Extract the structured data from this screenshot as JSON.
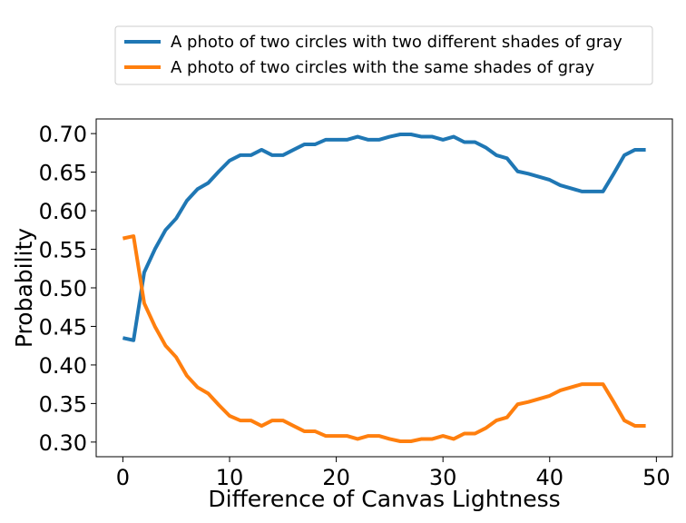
{
  "chart_data": {
    "type": "line",
    "xlabel": "Difference of Canvas Lightness",
    "ylabel": "Probability",
    "xlim": [
      -2.5,
      51.5
    ],
    "ylim": [
      0.281,
      0.719
    ],
    "xticks": [
      0,
      10,
      20,
      30,
      40,
      50
    ],
    "xtick_labels": [
      "0",
      "10",
      "20",
      "30",
      "40",
      "50"
    ],
    "yticks": [
      0.3,
      0.35,
      0.4,
      0.45,
      0.5,
      0.55,
      0.6,
      0.65,
      0.7
    ],
    "ytick_labels": [
      "0.30",
      "0.35",
      "0.40",
      "0.45",
      "0.50",
      "0.55",
      "0.60",
      "0.65",
      "0.70"
    ],
    "grid": false,
    "legend_position": "top, above plot",
    "x": [
      0,
      1,
      2,
      3,
      4,
      5,
      6,
      7,
      8,
      9,
      10,
      11,
      12,
      13,
      14,
      15,
      16,
      17,
      18,
      19,
      20,
      21,
      22,
      23,
      24,
      25,
      26,
      27,
      28,
      29,
      30,
      31,
      32,
      33,
      34,
      35,
      36,
      37,
      38,
      39,
      40,
      41,
      42,
      43,
      44,
      45,
      46,
      47,
      48,
      49
    ],
    "series": [
      {
        "name": "A photo of two circles with two different shades of gray",
        "color": "#1f77b4",
        "values": [
          0.435,
          0.432,
          0.52,
          0.55,
          0.575,
          0.59,
          0.613,
          0.628,
          0.636,
          0.651,
          0.665,
          0.672,
          0.672,
          0.679,
          0.672,
          0.672,
          0.679,
          0.686,
          0.686,
          0.692,
          0.692,
          0.692,
          0.696,
          0.692,
          0.692,
          0.696,
          0.699,
          0.699,
          0.696,
          0.696,
          0.692,
          0.696,
          0.689,
          0.689,
          0.682,
          0.672,
          0.668,
          0.651,
          0.648,
          0.644,
          0.64,
          0.633,
          0.629,
          0.625,
          0.625,
          0.625,
          0.648,
          0.672,
          0.679,
          0.679
        ]
      },
      {
        "name": "A photo of two circles with the same shades of gray",
        "color": "#ff7f0e",
        "values": [
          0.564,
          0.567,
          0.48,
          0.45,
          0.425,
          0.41,
          0.386,
          0.371,
          0.363,
          0.348,
          0.334,
          0.328,
          0.328,
          0.321,
          0.328,
          0.328,
          0.321,
          0.314,
          0.314,
          0.308,
          0.308,
          0.308,
          0.304,
          0.308,
          0.308,
          0.304,
          0.301,
          0.301,
          0.304,
          0.304,
          0.308,
          0.304,
          0.311,
          0.311,
          0.318,
          0.328,
          0.332,
          0.349,
          0.352,
          0.356,
          0.36,
          0.367,
          0.371,
          0.375,
          0.375,
          0.375,
          0.352,
          0.328,
          0.321,
          0.321
        ]
      }
    ]
  }
}
